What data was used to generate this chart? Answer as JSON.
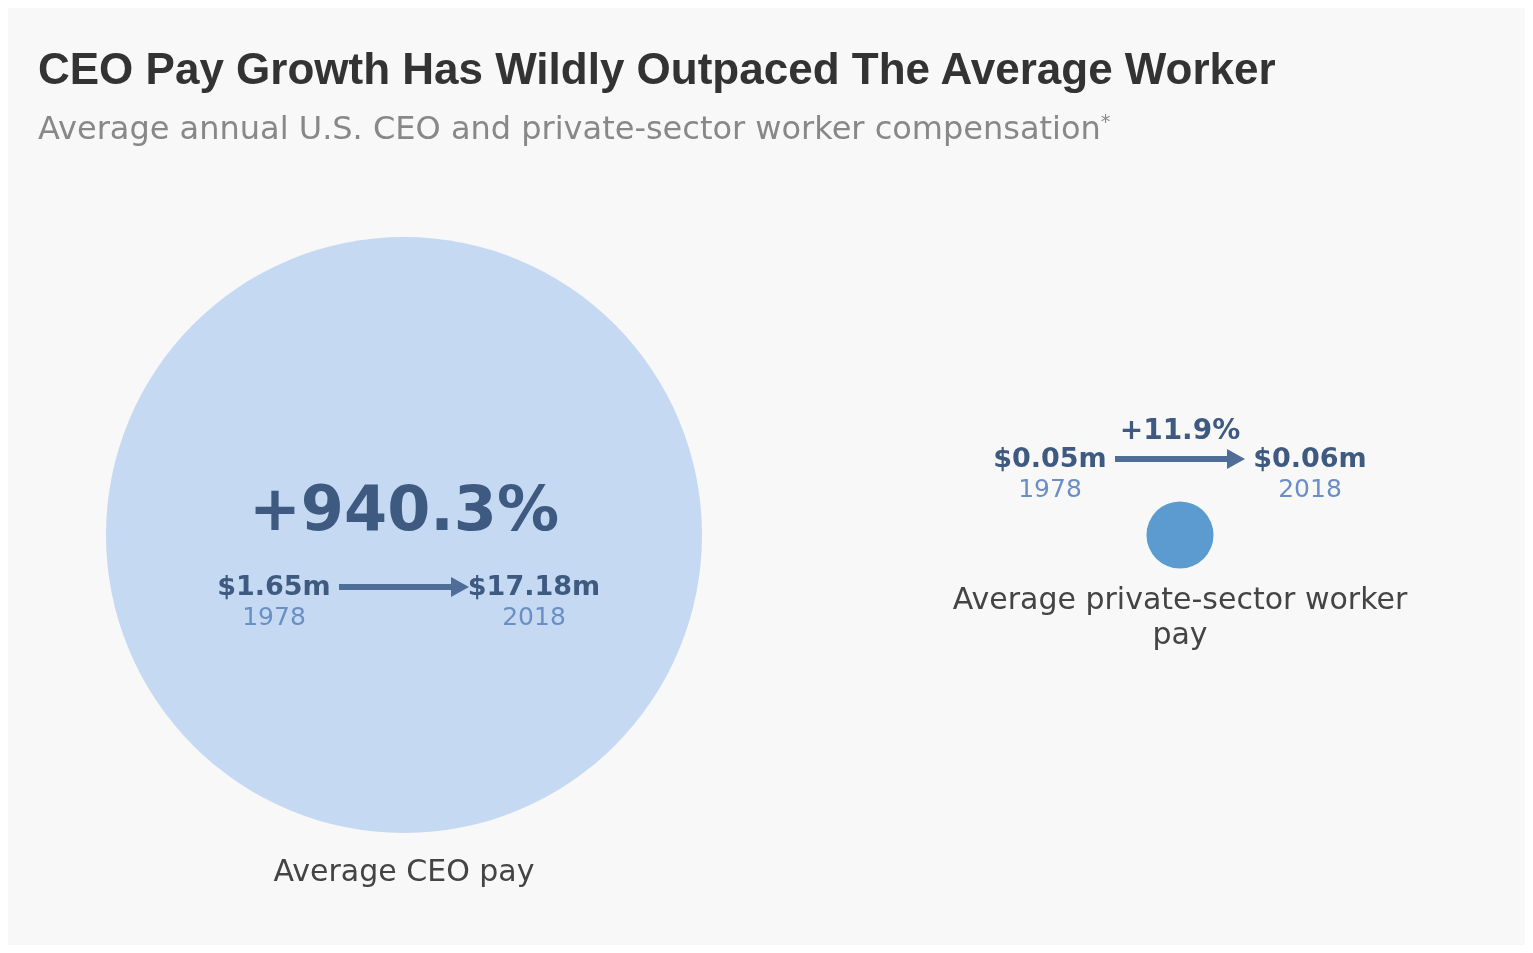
{
  "chart_data": {
    "type": "other",
    "title": "CEO Pay Growth Has Wildly Outpaced The Average Worker",
    "subtitle": "Average annual U.S. CEO and private-sector worker compensation$^{*}$",
    "categories": [
      "Average CEO pay",
      "Average private-sector worker pay"
    ],
    "values": [
      940.3,
      11.9
    ],
    "value_labels": [
      "+940.3%",
      "+11.9%"
    ],
    "colors": [
      "#c5d9f2",
      "#5b9bd0"
    ],
    "annotations": [
      "$1.65m",
      "1978",
      "$17.18m",
      "2018",
      "$0.05m",
      "1978",
      "$0.06m",
      "2018"
    ]
  }
}
